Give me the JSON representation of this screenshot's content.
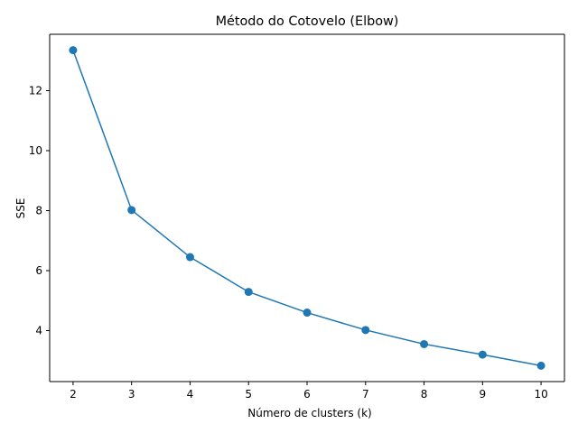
{
  "chart_data": {
    "type": "line",
    "title": "Método do Cotovelo (Elbow)",
    "xlabel": "Número de clusters (k)",
    "ylabel": "SSE",
    "x": [
      2,
      3,
      4,
      5,
      6,
      7,
      8,
      9,
      10
    ],
    "series": [
      {
        "values": [
          13.35,
          8.02,
          6.45,
          5.29,
          4.6,
          4.02,
          3.55,
          3.2,
          2.83
        ]
      }
    ],
    "xticks": [
      2,
      3,
      4,
      5,
      6,
      7,
      8,
      9,
      10
    ],
    "yticks": [
      4,
      6,
      8,
      10,
      12
    ],
    "xlim": [
      1.6,
      10.4
    ],
    "ylim": [
      2.3,
      13.88
    ],
    "grid": false,
    "line_color": "#1f77b4",
    "marker": "circle"
  }
}
